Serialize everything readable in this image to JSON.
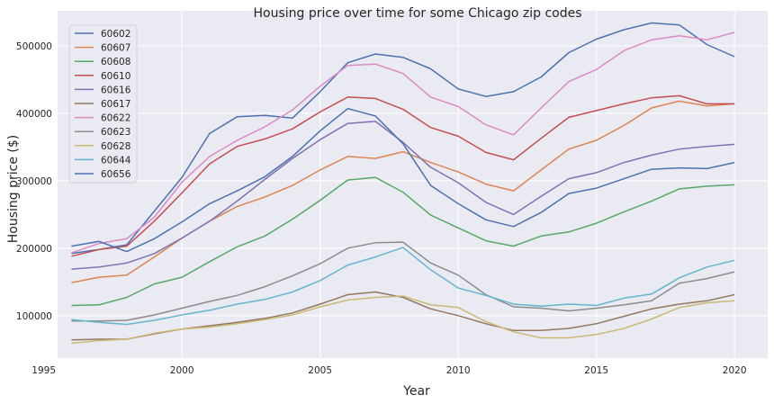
{
  "chart_data": {
    "type": "line",
    "title": "Housing price over time for some Chicago zip codes",
    "xlabel": "Year",
    "ylabel": "Housing price ($)",
    "xlim": [
      1995.5,
      2021.2
    ],
    "ylim": [
      37000,
      552000
    ],
    "xticks": [
      1995,
      2000,
      2005,
      2010,
      2015,
      2020
    ],
    "yticks": [
      100000,
      200000,
      300000,
      400000,
      500000
    ],
    "ytick_labels": [
      "100000",
      "200000",
      "300000",
      "400000",
      "500000"
    ],
    "grid": true,
    "legend_position": "top-left",
    "x": [
      1996,
      1997,
      1998,
      1999,
      2000,
      2001,
      2002,
      2003,
      2004,
      2005,
      2006,
      2007,
      2008,
      2009,
      2010,
      2011,
      2012,
      2013,
      2014,
      2015,
      2016,
      2017,
      2018,
      2019,
      2020
    ],
    "series": [
      {
        "name": "60602",
        "color": "#4c72b0",
        "values": [
          192000,
          198000,
          205000,
          255000,
          305000,
          370000,
          395000,
          397000,
          393000,
          432000,
          475000,
          488000,
          483000,
          466000,
          436000,
          425000,
          432000,
          454000,
          490000,
          510000,
          524000,
          534000,
          531000,
          502000,
          484000
        ]
      },
      {
        "name": "60607",
        "color": "#dd8452",
        "values": [
          149000,
          157000,
          160000,
          187000,
          215000,
          240000,
          262000,
          276000,
          293000,
          316000,
          336000,
          333000,
          343000,
          327000,
          313000,
          295000,
          285000,
          316000,
          347000,
          360000,
          382000,
          408000,
          418000,
          411000,
          414000
        ]
      },
      {
        "name": "60608",
        "color": "#55a868",
        "values": [
          115000,
          116000,
          127000,
          147000,
          157000,
          180000,
          202000,
          218000,
          243000,
          271000,
          301000,
          305000,
          283000,
          249000,
          230000,
          211000,
          203000,
          218000,
          224000,
          237000,
          254000,
          270000,
          288000,
          292000,
          294000
        ]
      },
      {
        "name": "60610",
        "color": "#c44e52",
        "values": [
          188000,
          198000,
          203000,
          240000,
          282000,
          325000,
          351000,
          362000,
          377000,
          402000,
          424000,
          422000,
          406000,
          379000,
          366000,
          342000,
          331000,
          363000,
          394000,
          404000,
          414000,
          423000,
          426000,
          414000,
          414000
        ]
      },
      {
        "name": "60616",
        "color": "#8172b3",
        "values": [
          169000,
          172000,
          178000,
          192000,
          215000,
          240000,
          270000,
          302000,
          333000,
          361000,
          385000,
          388000,
          357000,
          320000,
          297000,
          268000,
          250000,
          277000,
          303000,
          312000,
          327000,
          338000,
          347000,
          351000,
          354000
        ]
      },
      {
        "name": "60617",
        "color": "#937860",
        "values": [
          64000,
          65000,
          65000,
          73000,
          80000,
          85000,
          90000,
          96000,
          104000,
          117000,
          131000,
          135000,
          127000,
          110000,
          100000,
          88000,
          78000,
          78000,
          81000,
          88000,
          99000,
          110000,
          117000,
          122000,
          131000
        ]
      },
      {
        "name": "60622",
        "color": "#da8bc3",
        "values": [
          193000,
          207000,
          214000,
          246000,
          298000,
          336000,
          360000,
          380000,
          405000,
          440000,
          471000,
          473000,
          459000,
          424000,
          410000,
          383000,
          368000,
          408000,
          447000,
          465000,
          493000,
          509000,
          515000,
          509000,
          520000
        ]
      },
      {
        "name": "60623",
        "color": "#8c8c8c",
        "values": [
          92000,
          92000,
          93000,
          101000,
          111000,
          121000,
          130000,
          143000,
          159000,
          177000,
          200000,
          208000,
          209000,
          178000,
          160000,
          131000,
          113000,
          111000,
          107000,
          111000,
          116000,
          122000,
          148000,
          155000,
          165000
        ]
      },
      {
        "name": "60628",
        "color": "#ccb974",
        "values": [
          59000,
          63000,
          65000,
          74000,
          80000,
          83000,
          88000,
          94000,
          101000,
          113000,
          123000,
          127000,
          129000,
          116000,
          112000,
          91000,
          76000,
          67000,
          67000,
          72000,
          81000,
          95000,
          112000,
          119000,
          122000
        ]
      },
      {
        "name": "60644",
        "color": "#64b5cd",
        "values": [
          94000,
          90000,
          87000,
          93000,
          101000,
          108000,
          117000,
          124000,
          135000,
          152000,
          175000,
          187000,
          201000,
          168000,
          141000,
          130000,
          117000,
          114000,
          117000,
          115000,
          126000,
          132000,
          156000,
          172000,
          182000
        ]
      },
      {
        "name": "60656",
        "color": "#4c72b0",
        "values": [
          203000,
          210000,
          195000,
          214000,
          239000,
          266000,
          285000,
          306000,
          336000,
          374000,
          407000,
          396000,
          355000,
          293000,
          266000,
          242000,
          232000,
          253000,
          281000,
          289000,
          303000,
          317000,
          319000,
          318000,
          327000
        ]
      }
    ]
  }
}
